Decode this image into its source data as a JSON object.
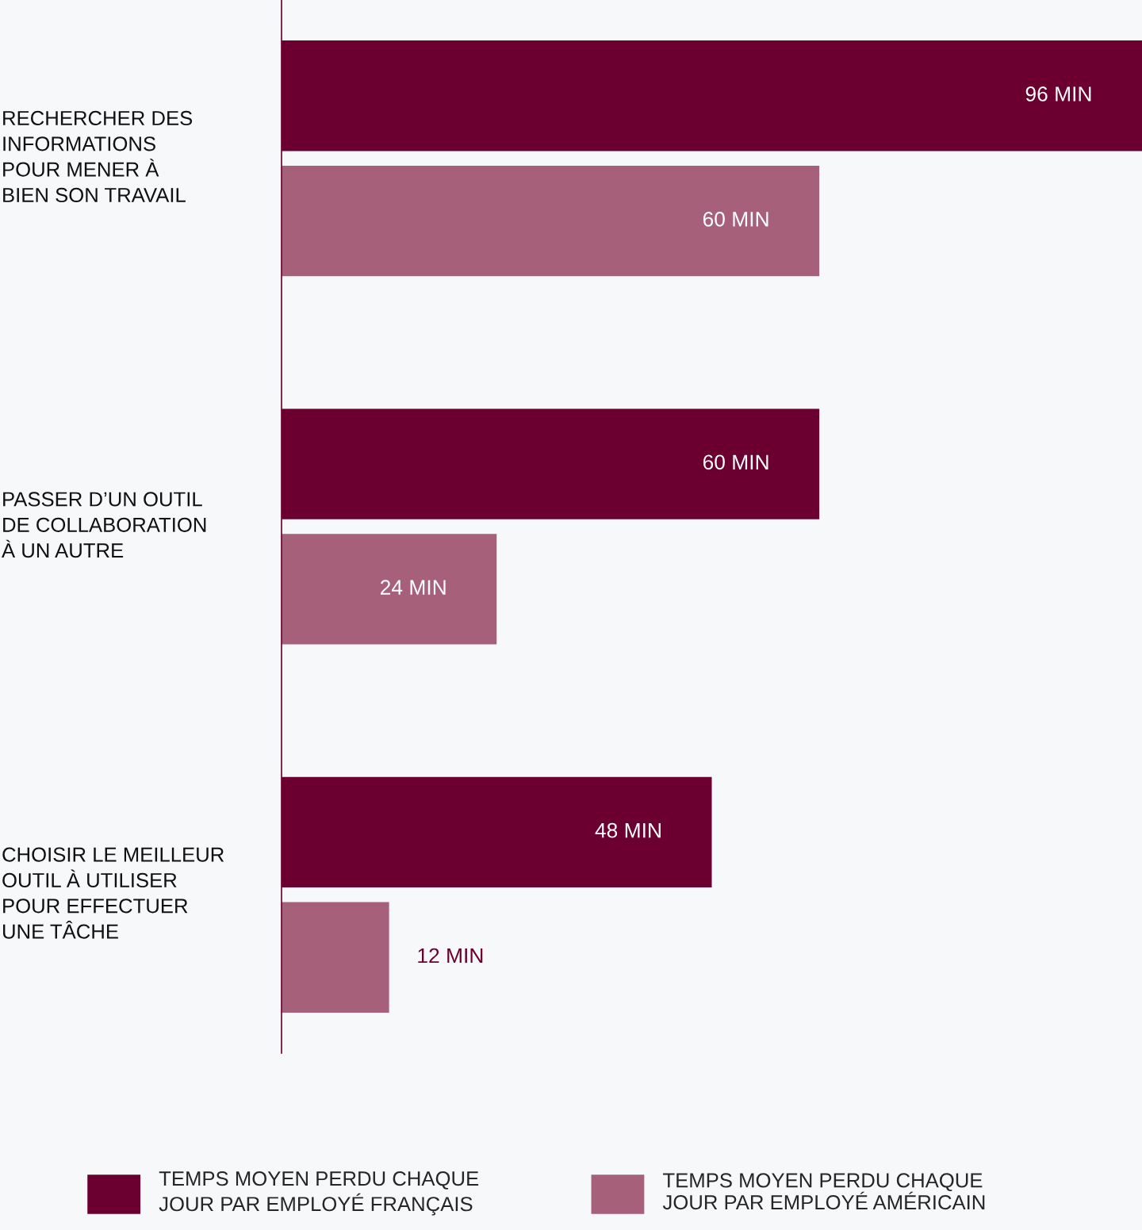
{
  "chart_data": {
    "type": "bar",
    "orientation": "horizontal",
    "categories": [
      "RECHERCHER DES\nINFORMATIONS\nPOUR MENER À\nBIEN SON TRAVAIL",
      "PASSER D’UN OUTIL\nDE COLLABORATION\nÀ UN AUTRE",
      "CHOISIR LE MEILLEUR\nOUTIL À UTILISER\nPOUR EFFECTUER\nUNE TÂCHE"
    ],
    "series": [
      {
        "name": "TEMPS MOYEN PERDU CHAQUE\nJOUR PAR EMPLOYÉ FRANÇAIS",
        "color": "#6b0030",
        "values": [
          96,
          60,
          48
        ],
        "value_labels": [
          "96 MIN",
          "60 MIN",
          "48 MIN"
        ]
      },
      {
        "name": "TEMPS MOYEN PERDU CHAQUE\nJOUR PAR EMPLOYÉ AMÉRICAIN",
        "color": "#a6607a",
        "values": [
          60,
          24,
          12
        ],
        "value_labels": [
          "60 MIN",
          "24 MIN",
          "12 MIN"
        ]
      }
    ],
    "xlim": [
      0,
      96
    ],
    "legend": "bottom"
  }
}
